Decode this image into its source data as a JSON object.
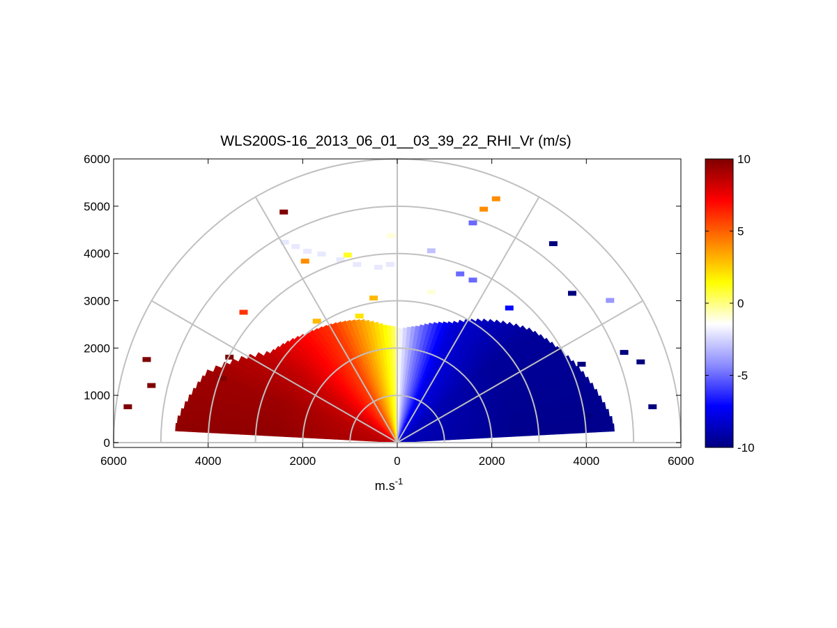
{
  "chart_data": {
    "type": "heatmap",
    "subtype": "polar-rhi-scan",
    "title": "WLS200S-16_2013_06_01__03_39_22_RHI_Vr (m/s)",
    "xlabel_base": "m.s",
    "xlabel_exp": "-1",
    "x_tick_labels": [
      "6000",
      "4000",
      "2000",
      "0",
      "2000",
      "4000",
      "6000"
    ],
    "y_tick_labels": [
      "0",
      "1000",
      "2000",
      "3000",
      "4000",
      "5000",
      "6000"
    ],
    "x_ticks": [
      -6000,
      -4000,
      -2000,
      0,
      2000,
      4000,
      6000
    ],
    "y_ticks": [
      0,
      1000,
      2000,
      3000,
      4000,
      5000,
      6000
    ],
    "xlim": [
      -6000,
      6000
    ],
    "ylim": [
      -100,
      6000
    ],
    "range_rings_m": [
      1000,
      2000,
      3000,
      4000,
      5000,
      6000
    ],
    "spokes_deg": [
      30,
      60,
      90,
      120,
      150
    ],
    "colorbar": {
      "min": -10,
      "max": 10,
      "tick_labels": [
        "10",
        "5",
        "0",
        "-5",
        "-10"
      ],
      "tick_values": [
        10,
        5,
        0,
        -5,
        -10
      ],
      "colors_low_to_high": [
        "#00007f",
        "#0000ff",
        "#8c8cff",
        "#ffffff",
        "#ffff00",
        "#ff8000",
        "#ff0000",
        "#7f0000"
      ]
    },
    "main_field": {
      "sector_velocity_by_elevation": [
        {
          "elev_deg": 5,
          "vr": 9.6,
          "max_range_m": 4700
        },
        {
          "elev_deg": 20,
          "vr": 9.3,
          "max_range_m": 4300
        },
        {
          "elev_deg": 35,
          "vr": 8.5,
          "max_range_m": 3300
        },
        {
          "elev_deg": 50,
          "vr": 7.0,
          "max_range_m": 3000
        },
        {
          "elev_deg": 62,
          "vr": 5.8,
          "max_range_m": 2850
        },
        {
          "elev_deg": 74,
          "vr": 3.5,
          "max_range_m": 2700
        },
        {
          "elev_deg": 84,
          "vr": 1.5,
          "max_range_m": 2500
        },
        {
          "elev_deg": 89,
          "vr": 0.3,
          "max_range_m": 2450
        },
        {
          "elev_deg": 91,
          "vr": -1.5,
          "max_range_m": 2400
        },
        {
          "elev_deg": 100,
          "vr": -4.5,
          "max_range_m": 2500
        },
        {
          "elev_deg": 115,
          "vr": -8.0,
          "max_range_m": 2800
        },
        {
          "elev_deg": 140,
          "vr": -9.4,
          "max_range_m": 3700
        },
        {
          "elev_deg": 175,
          "vr": -9.7,
          "max_range_m": 4600
        }
      ]
    },
    "scattered_returns": [
      {
        "x": -2400,
        "y": 4870,
        "vr": 10
      },
      {
        "x": -3250,
        "y": 2750,
        "vr": 6
      },
      {
        "x": -1950,
        "y": 3830,
        "vr": 4
      },
      {
        "x": 1830,
        "y": 4930,
        "vr": 4
      },
      {
        "x": 2090,
        "y": 5150,
        "vr": 4
      },
      {
        "x": -1050,
        "y": 3960,
        "vr": 1
      },
      {
        "x": -500,
        "y": 3050,
        "vr": 3
      },
      {
        "x": -1700,
        "y": 2560,
        "vr": 3
      },
      {
        "x": -800,
        "y": 2670,
        "vr": 2
      },
      {
        "x": -2380,
        "y": 4230,
        "vr": -2
      },
      {
        "x": -2150,
        "y": 4140,
        "vr": -2
      },
      {
        "x": -1900,
        "y": 4040,
        "vr": -2
      },
      {
        "x": -1600,
        "y": 3980,
        "vr": -2
      },
      {
        "x": -1200,
        "y": 3860,
        "vr": -2
      },
      {
        "x": -850,
        "y": 3760,
        "vr": -2
      },
      {
        "x": -400,
        "y": 3700,
        "vr": -2
      },
      {
        "x": -150,
        "y": 3760,
        "vr": -2
      },
      {
        "x": -130,
        "y": 4370,
        "vr": -1
      },
      {
        "x": 720,
        "y": 4050,
        "vr": -3
      },
      {
        "x": 720,
        "y": 3180,
        "vr": -1
      },
      {
        "x": 1330,
        "y": 3560,
        "vr": -5
      },
      {
        "x": 1600,
        "y": 4640,
        "vr": -5
      },
      {
        "x": 1600,
        "y": 3430,
        "vr": -5
      },
      {
        "x": 2370,
        "y": 2840,
        "vr": -7
      },
      {
        "x": 3300,
        "y": 4200,
        "vr": -10
      },
      {
        "x": 3700,
        "y": 3150,
        "vr": -10
      },
      {
        "x": 4500,
        "y": 3000,
        "vr": -4
      },
      {
        "x": 4800,
        "y": 1900,
        "vr": -10
      },
      {
        "x": 5150,
        "y": 1700,
        "vr": -10
      },
      {
        "x": 5400,
        "y": 750,
        "vr": -10
      },
      {
        "x": 4050,
        "y": 570,
        "vr": -10
      },
      {
        "x": -5300,
        "y": 1750,
        "vr": 10
      },
      {
        "x": -5700,
        "y": 750,
        "vr": 10
      },
      {
        "x": -5200,
        "y": 1200,
        "vr": 10
      },
      {
        "x": -3700,
        "y": 1350,
        "vr": 10
      },
      {
        "x": -3550,
        "y": 1800,
        "vr": 10
      },
      {
        "x": 3400,
        "y": 1950,
        "vr": -10
      },
      {
        "x": 3900,
        "y": 1650,
        "vr": -10
      }
    ]
  }
}
